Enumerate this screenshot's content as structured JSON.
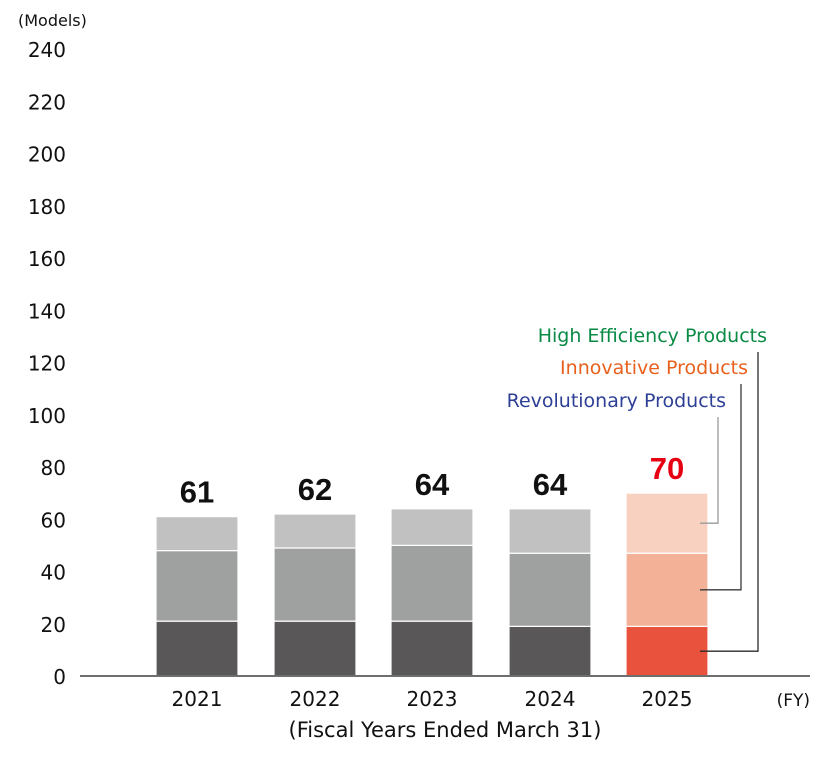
{
  "chart_data": {
    "type": "bar",
    "stacked": true,
    "title": "",
    "ylabel": "(Models)",
    "xlabel": "(Fiscal Years Ended March 31)",
    "x_unit": "(FY)",
    "ylim": [
      0,
      240
    ],
    "yticks": [
      0,
      20,
      40,
      60,
      80,
      100,
      120,
      140,
      160,
      180,
      200,
      220,
      240
    ],
    "grid": false,
    "categories": [
      "2021",
      "2022",
      "2023",
      "2024",
      "2025"
    ],
    "series": [
      {
        "name": "High Efficiency Products",
        "values": [
          21,
          21,
          21,
          19,
          19
        ]
      },
      {
        "name": "Innovative Products",
        "values": [
          27,
          28,
          29,
          28,
          28
        ]
      },
      {
        "name": "Revolutionary Products",
        "values": [
          13,
          13,
          14,
          17,
          23
        ]
      }
    ],
    "totals": [
      61,
      62,
      64,
      64,
      70
    ],
    "highlight_category": "2025",
    "legend": {
      "placement": "right",
      "entries": [
        {
          "label": "High Efficiency Products",
          "color": "#0a8a45"
        },
        {
          "label": "Innovative Products",
          "color": "#e8601c"
        },
        {
          "label": "Revolutionary Products",
          "color": "#2e3f96"
        }
      ]
    },
    "colors": {
      "normal": [
        "#595757",
        "#9fa0a0",
        "#c0c1c0"
      ],
      "highlight": [
        "#e9533d",
        "#f3b198",
        "#f9d1c1"
      ],
      "total_normal": "#111111",
      "total_highlight": "#e60012",
      "axis": "#6e6e6e"
    }
  }
}
